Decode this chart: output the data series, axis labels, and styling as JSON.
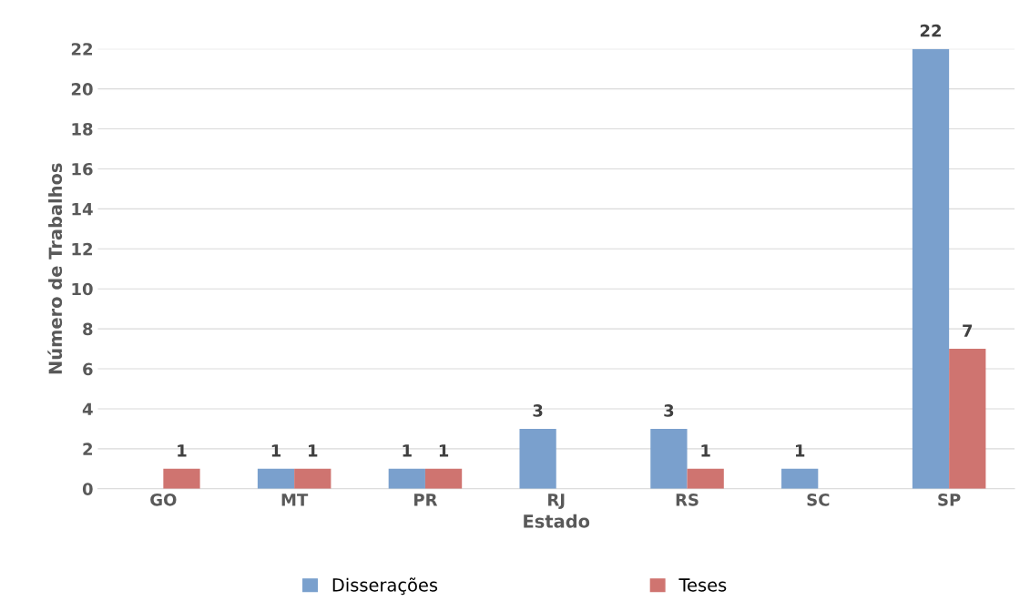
{
  "chart_data": {
    "type": "bar",
    "xlabel": "Estado",
    "ylabel": "Número de Trabalhos",
    "categories": [
      "GO",
      "MT",
      "PR",
      "RJ",
      "RS",
      "SC",
      "SP"
    ],
    "series": [
      {
        "name": "Disserações",
        "color": "#7aa0cd",
        "values": [
          null,
          1,
          1,
          3,
          3,
          1,
          22
        ]
      },
      {
        "name": "Teses",
        "color": "#cf7470",
        "values": [
          1,
          1,
          1,
          null,
          1,
          null,
          7
        ]
      }
    ],
    "ylim": [
      0,
      22
    ],
    "yticks": [
      0,
      2,
      4,
      6,
      8,
      10,
      12,
      14,
      16,
      18,
      20,
      22
    ],
    "grid": "y",
    "legend": "bottom",
    "data_labels": true
  }
}
